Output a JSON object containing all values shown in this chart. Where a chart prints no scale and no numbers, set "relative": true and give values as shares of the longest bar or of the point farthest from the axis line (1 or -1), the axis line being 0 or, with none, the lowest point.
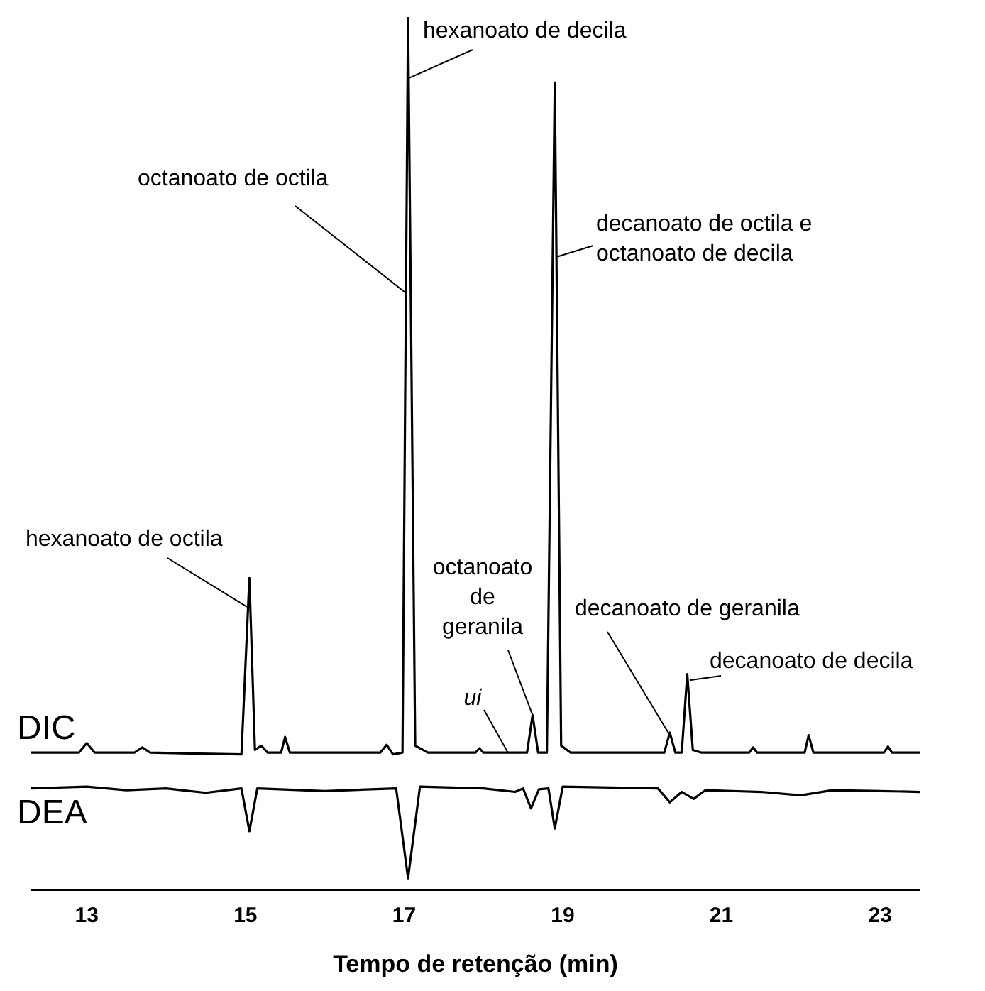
{
  "chart_data": {
    "type": "line",
    "relative": true,
    "xlabel": "Tempo de retenção (min)",
    "xlim": [
      12.3,
      23.5
    ],
    "xticks": [
      13,
      15,
      17,
      19,
      21,
      23
    ],
    "grid": false,
    "legend": false,
    "marker": "none",
    "line_style": "solid",
    "series": [
      {
        "name": "DIC",
        "color": "#000000",
        "x": [
          12.3,
          12.9,
          13.0,
          13.1,
          13.6,
          13.7,
          13.8,
          14.95,
          15.05,
          15.12,
          15.2,
          15.28,
          15.45,
          15.5,
          15.56,
          16.7,
          16.78,
          16.86,
          16.98,
          17.05,
          17.14,
          17.3,
          17.9,
          17.95,
          18.0,
          18.55,
          18.62,
          18.69,
          18.8,
          18.9,
          18.98,
          19.1,
          20.28,
          20.35,
          20.42,
          20.5,
          20.57,
          20.64,
          20.75,
          21.35,
          21.4,
          21.45,
          22.05,
          22.1,
          22.16,
          23.05,
          23.1,
          23.15,
          23.5
        ],
        "values": [
          0.157,
          0.157,
          0.168,
          0.157,
          0.157,
          0.163,
          0.157,
          0.155,
          0.357,
          0.16,
          0.165,
          0.157,
          0.157,
          0.175,
          0.157,
          0.157,
          0.166,
          0.155,
          0.157,
          1.0,
          0.165,
          0.157,
          0.157,
          0.162,
          0.157,
          0.157,
          0.2,
          0.157,
          0.157,
          0.925,
          0.165,
          0.157,
          0.157,
          0.18,
          0.157,
          0.157,
          0.247,
          0.16,
          0.157,
          0.157,
          0.163,
          0.157,
          0.157,
          0.177,
          0.157,
          0.157,
          0.164,
          0.157,
          0.157
        ]
      },
      {
        "name": "DEA",
        "color": "#000000",
        "x": [
          12.3,
          13.0,
          13.5,
          14.0,
          14.5,
          14.95,
          15.05,
          15.15,
          16.0,
          16.9,
          17.05,
          17.2,
          18.0,
          18.4,
          18.5,
          18.6,
          18.7,
          18.82,
          18.9,
          19.0,
          20.2,
          20.35,
          20.5,
          20.65,
          20.8,
          21.5,
          22.0,
          22.4,
          23.0,
          23.5
        ],
        "values": [
          0.116,
          0.118,
          0.114,
          0.116,
          0.111,
          0.116,
          0.067,
          0.116,
          0.113,
          0.116,
          0.013,
          0.118,
          0.116,
          0.112,
          0.116,
          0.093,
          0.115,
          0.116,
          0.07,
          0.118,
          0.116,
          0.1,
          0.112,
          0.104,
          0.114,
          0.112,
          0.108,
          0.114,
          0.113,
          0.112
        ]
      }
    ],
    "annotations": [
      {
        "text": "hexanoato de decila",
        "x": 17.058,
        "y": 0.93
      },
      {
        "text": "octanoato de octila",
        "x": 17.02,
        "y": 0.684
      },
      {
        "text": "decanoato de octila e octanoato de decila",
        "x": 18.92,
        "y": 0.725
      },
      {
        "text": "hexanoato de octila",
        "x": 15.02,
        "y": 0.324
      },
      {
        "text": "octanoato de geranila",
        "x": 18.62,
        "y": 0.2
      },
      {
        "text": "ui",
        "x": 18.31,
        "y": 0.157
      },
      {
        "text": "decanoato de geranila",
        "x": 20.33,
        "y": 0.18
      },
      {
        "text": "decanoato de decila",
        "x": 20.6,
        "y": 0.24
      }
    ]
  }
}
